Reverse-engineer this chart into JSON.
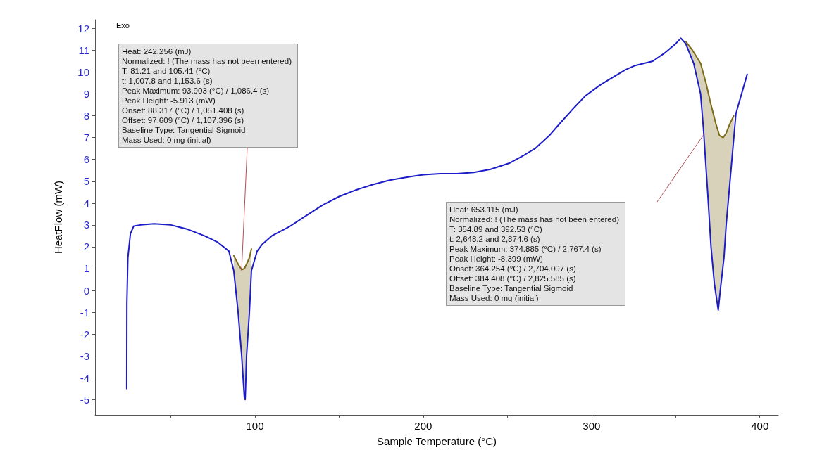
{
  "chart_data": {
    "type": "line",
    "xlabel": "Sample Temperature (°C)",
    "ylabel": "HeatFlow (mW)",
    "xlim": [
      5,
      411
    ],
    "ylim": [
      -5.7,
      12.4
    ],
    "xticks": [
      {
        "value": 50,
        "label": null
      },
      100,
      {
        "value": 150,
        "label": null
      },
      200,
      {
        "value": 250,
        "label": null
      },
      300,
      {
        "value": 350,
        "label": null
      },
      400
    ],
    "yticks": [
      -5,
      -4,
      -3,
      -2,
      -1,
      0,
      1,
      2,
      3,
      4,
      5,
      6,
      7,
      8,
      9,
      10,
      11,
      12
    ],
    "grid": false,
    "marker": "none",
    "series": [
      {
        "color": "#1c1cc8",
        "x": [
          23.8,
          23.9,
          24.5,
          26,
          28,
          32,
          40,
          50,
          60,
          70,
          78,
          84.5,
          87.4,
          90,
          92.1,
          93.7,
          94.2,
          95,
          96.7,
          97.9,
          101.3,
          104.2,
          110,
          120,
          130,
          140,
          150,
          160,
          170,
          180,
          191.6,
          200,
          210,
          220,
          230,
          240,
          251.5,
          260,
          266.5,
          275,
          281.2,
          290,
          296.2,
          305,
          311.3,
          320,
          325.9,
          336.4,
          343.9,
          350,
          353.1,
          356,
          360.7,
          364.8,
          366.5,
          369,
          371,
          373,
          375.3,
          376.5,
          378.7,
          380,
          381.6,
          385.8,
          392.5
        ],
        "values": [
          -4.5,
          -0.6,
          1.5,
          2.6,
          2.95,
          3.0,
          3.05,
          3.0,
          2.8,
          2.5,
          2.2,
          1.8,
          0.9,
          -1.0,
          -3.0,
          -4.9,
          -5.0,
          -3.0,
          -1.0,
          0.9,
          1.8,
          2.1,
          2.5,
          2.9,
          3.4,
          3.9,
          4.3,
          4.6,
          4.85,
          5.05,
          5.2,
          5.3,
          5.35,
          5.35,
          5.4,
          5.55,
          5.84,
          6.2,
          6.5,
          7.1,
          7.65,
          8.4,
          8.9,
          9.4,
          9.7,
          10.1,
          10.3,
          10.5,
          10.9,
          11.3,
          11.55,
          11.3,
          10.4,
          9.0,
          7.4,
          4.5,
          2.0,
          0.3,
          -0.9,
          0.0,
          1.5,
          3.0,
          4.4,
          8.1,
          9.9
        ]
      },
      {
        "color": "#7d6b1a",
        "x": [
          87.4,
          90.0,
          92.1,
          93.7,
          95.0,
          96.7,
          97.9
        ],
        "values": [
          1.6,
          1.2,
          0.95,
          1.0,
          1.2,
          1.5,
          1.9
        ],
        "lower": [
          0.9,
          -1.0,
          -3.0,
          -4.9,
          -3.0,
          -1.0,
          0.9
        ],
        "upper": [
          1.6,
          1.2,
          0.95,
          1.0,
          1.2,
          1.5,
          1.9
        ]
      },
      {
        "color": "#7d6b1a",
        "x": [
          356,
          360,
          364.8,
          368,
          371,
          374,
          376,
          378.2,
          380,
          382,
          384.5
        ],
        "values": [
          11.4,
          11.0,
          10.4,
          9.5,
          8.5,
          7.6,
          7.1,
          7.0,
          7.2,
          7.6,
          8.0
        ],
        "lower": [
          11.3,
          10.6,
          9.0,
          6.0,
          2.0,
          -0.3,
          -0.6,
          1.2,
          3.0,
          4.8,
          7.2
        ],
        "upper": [
          11.4,
          11.0,
          10.4,
          9.5,
          8.5,
          7.6,
          7.1,
          7.0,
          7.2,
          7.6,
          8.0
        ]
      }
    ],
    "annotations": [
      "Exo",
      "Heat:  242.256 (mJ)",
      "Normalized:  ! (The mass has not been entered)",
      "T: 81.21 and 105.41 (°C)",
      "t: 1,007.8 and 1,153.6 (s)",
      "Peak Maximum:  93.903 (°C) / 1,086.4 (s)",
      "Peak Height:  -5.913 (mW)",
      "Onset:  88.317 (°C) / 1,051.408 (s)",
      "Offset:  97.609 (°C) / 1,107.396 (s)",
      "Baseline Type:  Tangential Sigmoid",
      "Mass Used:  0 mg (initial)",
      "Heat:  653.115 (mJ)",
      "Normalized:  ! (The mass has not been entered)",
      "T: 354.89 and 392.53 (°C)",
      "t: 2,648.2 and 2,874.6 (s)",
      "Peak Maximum:  374.885 (°C) / 2,767.4 (s)",
      "Peak Height:  -8.399 (mW)",
      "Onset:  364.254 (°C) / 2,704.007 (s)",
      "Offset:  384.408 (°C) / 2,825.585 (s)",
      "Baseline Type:  Tangential Sigmoid",
      "Mass Used:  0 mg (initial)"
    ]
  }
}
